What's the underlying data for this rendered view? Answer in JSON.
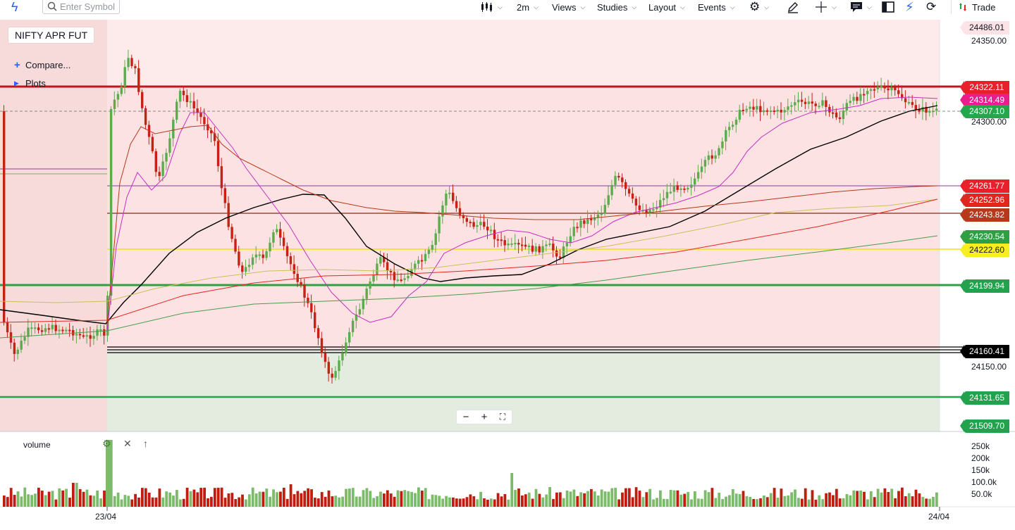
{
  "toolbar": {
    "search_placeholder": "Enter Symbol",
    "interval": "2m",
    "views": "Views",
    "studies": "Studies",
    "layout": "Layout",
    "events": "Events",
    "trade": "Trade"
  },
  "chart": {
    "symbol": "NIFTY APR FUT",
    "compare_label": "Compare...",
    "plots_label": "Plots",
    "price_axis_ticks": [
      "24350.00",
      "24300.00",
      "24150.00"
    ],
    "price_labels": [
      {
        "text": "24486.01",
        "bg": "#fde2e6",
        "fg": "#131722"
      },
      {
        "text": "24322.11",
        "bg": "#e8202c",
        "fg": "#ffffff"
      },
      {
        "text": "24314.49",
        "bg": "#e91e8c",
        "fg": "#ffffff"
      },
      {
        "text": "24307.10",
        "bg": "#26a64a",
        "fg": "#ffffff"
      },
      {
        "text": "24261.77",
        "bg": "#e8202c",
        "fg": "#ffffff"
      },
      {
        "text": "24252.96",
        "bg": "#e0271f",
        "fg": "#ffffff"
      },
      {
        "text": "24243.82",
        "bg": "#b5391a",
        "fg": "#ffffff"
      },
      {
        "text": "24230.54",
        "bg": "#2ea043",
        "fg": "#ffffff"
      },
      {
        "text": "24222.60",
        "bg": "#f7ee1f",
        "fg": "#131722"
      },
      {
        "text": "24199.94",
        "bg": "#23a24d",
        "fg": "#ffffff"
      },
      {
        "text": "24160.41",
        "bg": "#000000",
        "fg": "#ffffff"
      },
      {
        "text": "24131.65",
        "bg": "#23a24d",
        "fg": "#ffffff"
      },
      {
        "text": "21509.70",
        "bg": "#23a24d",
        "fg": "#ffffff"
      }
    ],
    "time_ticks": [
      "23/04",
      "24/04"
    ],
    "volume_label": "volume",
    "volume_ticks": [
      "250k",
      "200k",
      "150k",
      "100.0k",
      "50.0k"
    ],
    "zoom": {
      "minus": "−",
      "plus": "+",
      "fit": "⛶"
    },
    "colors": {
      "up": "#5cab4c",
      "down": "#c62114",
      "ma_black": "#000000",
      "ma_pink": "#c72ec0"
    }
  }
}
